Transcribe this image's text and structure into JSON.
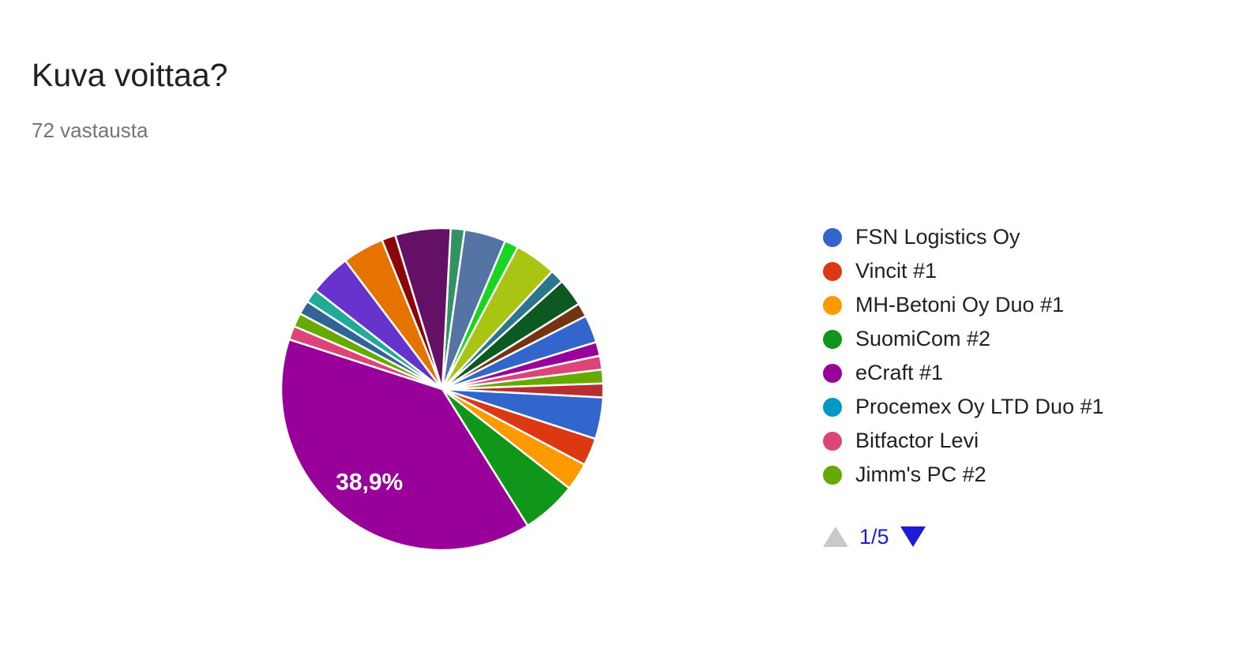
{
  "header": {
    "title": "Kuva voittaa?",
    "subtitle": "72 vastausta"
  },
  "chart_data": {
    "type": "pie",
    "title": "Kuva voittaa?",
    "subtitle": "72 vastausta",
    "total_responses": 72,
    "start_angle_deg": 3,
    "grid": false,
    "slices": [
      {
        "color": "#329262",
        "votes": 1
      },
      {
        "color": "#5574A6",
        "votes": 3
      },
      {
        "color": "#16D620",
        "votes": 1
      },
      {
        "color": "#A9C413",
        "votes": 3
      },
      {
        "color": "#2A778D",
        "votes": 1
      },
      {
        "color": "#0C5922",
        "votes": 2
      },
      {
        "color": "#743411",
        "votes": 1
      },
      {
        "color": "#3366CC",
        "votes": 2
      },
      {
        "color": "#990099",
        "votes": 1
      },
      {
        "color": "#DD4477",
        "votes": 1
      },
      {
        "color": "#66AA00",
        "votes": 1
      },
      {
        "color": "#B82E2E",
        "votes": 1
      },
      {
        "name": "FSN Logistics Oy",
        "color": "#3366CC",
        "votes": 3
      },
      {
        "name": "Vincit #1",
        "color": "#DC3912",
        "votes": 2
      },
      {
        "name": "MH-Betoni Oy Duo #1",
        "color": "#FF9900",
        "votes": 2
      },
      {
        "name": "SuomiCom #2",
        "color": "#109618",
        "votes": 4
      },
      {
        "name": "eCraft #1",
        "color": "#990099",
        "votes": 28,
        "percent_label": "38,9%"
      },
      {
        "name": "Bitfactor Levi",
        "color": "#DD4477",
        "votes": 1
      },
      {
        "name": "Jimm's PC #2",
        "color": "#66AA00",
        "votes": 1
      },
      {
        "color": "#316395",
        "votes": 1
      },
      {
        "color": "#22AA99",
        "votes": 1
      },
      {
        "color": "#6633CC",
        "votes": 3
      },
      {
        "color": "#E67300",
        "votes": 3
      },
      {
        "color": "#8B0707",
        "votes": 1
      },
      {
        "color": "#651067",
        "votes": 4
      }
    ],
    "annotations": [
      {
        "text": "38,9%",
        "slice": "eCraft #1",
        "color": "#FFFFFF"
      }
    ],
    "legend": {
      "position": "right",
      "page_indicator": "1/5",
      "prev_enabled": false,
      "next_enabled": true,
      "items": [
        {
          "label": "FSN Logistics Oy",
          "color": "#3366CC"
        },
        {
          "label": "Vincit #1",
          "color": "#DC3912"
        },
        {
          "label": "MH-Betoni Oy Duo #1",
          "color": "#FF9900"
        },
        {
          "label": "SuomiCom #2",
          "color": "#109618"
        },
        {
          "label": "eCraft #1",
          "color": "#990099"
        },
        {
          "label": "Procemex Oy LTD Duo #1",
          "color": "#0099C6"
        },
        {
          "label": "Bitfactor Levi",
          "color": "#DD4477"
        },
        {
          "label": "Jimm's PC #2",
          "color": "#66AA00"
        }
      ]
    }
  },
  "colors": {
    "title": "#212121",
    "subtitle": "#757575",
    "legend_text": "#212121",
    "pagination_active": "#1C1CD6",
    "pagination_disabled": "#C9C9C9",
    "slice_label": "#FFFFFF",
    "slice_stroke": "#FFFFFF",
    "background": "#FFFFFF"
  }
}
